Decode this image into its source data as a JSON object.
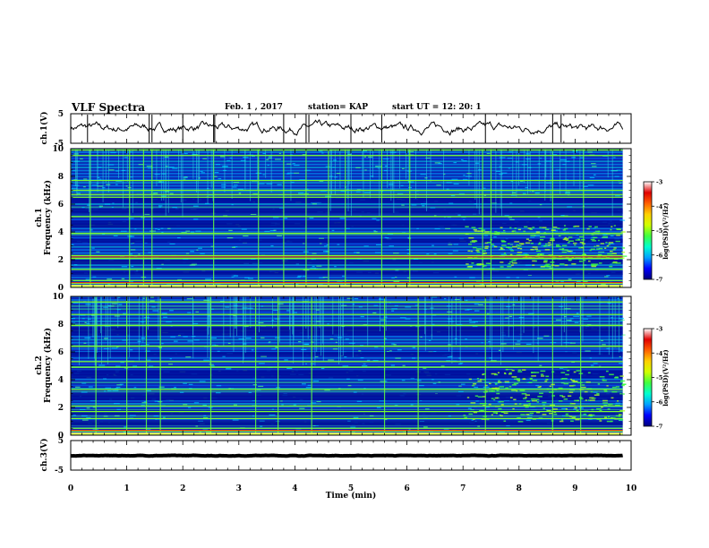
{
  "header": {
    "title": "VLF Spectra",
    "date": "Feb. 1 , 2017",
    "station": "station= KAP",
    "start": "start  UT =   12: 20: 1"
  },
  "panels": {
    "ch1_wave": {
      "ylabel": "ch.1(V)"
    },
    "ch1_spec": {
      "ylabel_ch": "ch.1",
      "ylabel_freq": "Frequency  (kHz)"
    },
    "ch2_spec": {
      "ylabel_ch": "ch.2",
      "ylabel_freq": "Frequency  (kHz)"
    },
    "ch3_wave": {
      "ylabel": "ch.3(V)"
    }
  },
  "xaxis": {
    "label": "Time  (min)"
  },
  "colorbar": {
    "label": "log(PSD)(V²/Hz)",
    "ticks": [
      "-3",
      "-4",
      "-5",
      "-6",
      "-7"
    ],
    "stops": [
      "#00007a",
      "#0000ff",
      "#00a0ff",
      "#00ffd0",
      "#40ff40",
      "#d0ff00",
      "#ffd000",
      "#ff6000",
      "#e00000",
      "#ffffff"
    ]
  },
  "chart_data": [
    {
      "type": "line",
      "name_ref": "ch.1(V)",
      "xlim": [
        0,
        10
      ],
      "ylim": [
        -5,
        5
      ],
      "xticks": [
        "0",
        "1",
        "2",
        "3",
        "4",
        "5",
        "6",
        "7",
        "8",
        "9",
        "10"
      ],
      "yticks": [
        "5",
        "-5"
      ],
      "t_end": 9.85,
      "mean": 0.2,
      "noise_amp": 1.5,
      "spike_times": [
        0.3,
        1.4,
        1.45,
        2.0,
        2.55,
        2.57,
        3.8,
        4.2,
        4.25,
        5.0,
        5.55,
        7.4,
        8.6,
        8.75
      ],
      "color": "#000000"
    },
    {
      "type": "heatmap",
      "name_ref": "ch.1",
      "xlim": [
        0,
        10
      ],
      "ylim": [
        0,
        10
      ],
      "xticks": [
        "0",
        "1",
        "2",
        "3",
        "4",
        "5",
        "6",
        "7",
        "8",
        "9",
        "10"
      ],
      "yticks": [
        "0",
        "2",
        "4",
        "6",
        "8",
        "10"
      ],
      "t_end": 9.85,
      "dark_bands_khz": [
        [
          6.1,
          6.5
        ],
        [
          5.3,
          5.7
        ],
        [
          4.3,
          4.8
        ],
        [
          3.2,
          3.5
        ],
        [
          1.7,
          2.0
        ],
        [
          0.9,
          1.2
        ]
      ],
      "green_lines_khz": [
        9.9,
        9.5,
        7.7,
        7.0,
        6.7,
        6.5,
        5.1,
        3.9,
        2.3,
        2.1,
        1.3,
        0.5,
        0.3,
        0.1
      ],
      "red_lines_khz": [
        2.2,
        0.35
      ],
      "emission_start_min": 7.0,
      "emission_khz": [
        1.5,
        4.5
      ],
      "vertical_spike_times": [
        0.35,
        1.05,
        1.3,
        1.45,
        2.55,
        3.35,
        3.8,
        4.2,
        4.6,
        4.9,
        5.55,
        6.05,
        7.35,
        7.5,
        8.6,
        9.15
      ]
    },
    {
      "type": "heatmap",
      "name_ref": "ch.2",
      "xlim": [
        0,
        10
      ],
      "ylim": [
        0,
        10
      ],
      "xticks": [
        "0",
        "1",
        "2",
        "3",
        "4",
        "5",
        "6",
        "7",
        "8",
        "9",
        "10"
      ],
      "yticks": [
        "0",
        "2",
        "4",
        "6",
        "8",
        "10"
      ],
      "t_end": 9.85,
      "dark_bands_khz": [
        [
          7.2,
          7.8
        ],
        [
          5.7,
          6.0
        ],
        [
          4.1,
          4.7
        ],
        [
          2.5,
          3.0
        ],
        [
          1.5,
          1.8
        ],
        [
          0.7,
          1.0
        ]
      ],
      "green_lines_khz": [
        9.6,
        8.7,
        7.9,
        6.4,
        5.3,
        4.9,
        3.3,
        2.1,
        1.7,
        1.2,
        0.5,
        0.3,
        0.1
      ],
      "red_lines_khz": [
        0.35
      ],
      "emission_start_min": 7.0,
      "emission_khz": [
        1.0,
        4.8
      ],
      "vertical_spike_times": [
        0.45,
        1.0,
        1.35,
        1.6,
        2.5,
        3.3,
        3.7,
        4.3,
        5.6,
        6.2,
        7.4,
        8.6,
        9.1
      ]
    },
    {
      "type": "line",
      "name_ref": "ch.3(V)",
      "xlim": [
        0,
        10
      ],
      "ylim": [
        -5,
        5
      ],
      "xticks": [
        "0",
        "1",
        "2",
        "3",
        "4",
        "5",
        "6",
        "7",
        "8",
        "9",
        "10"
      ],
      "yticks": [
        "5",
        "-5"
      ],
      "t_end": 9.85,
      "mean": -0.1,
      "noise_amp": 0.1,
      "spike_times": [],
      "color": "#000000"
    }
  ]
}
